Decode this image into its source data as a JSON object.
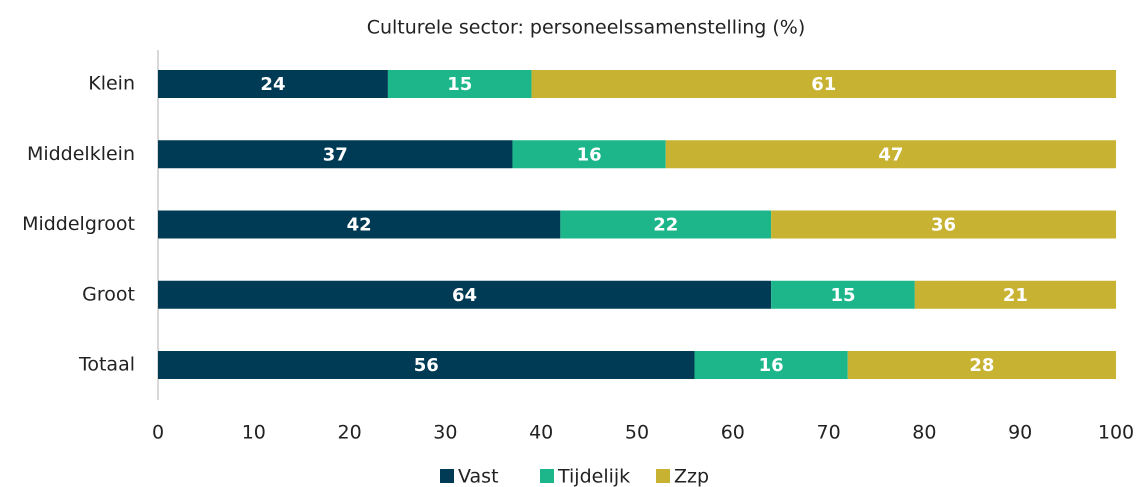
{
  "chart_data": {
    "type": "stacked-barh",
    "title": "Culturele sector: personeelssamenstelling (%)",
    "categories": [
      "Klein",
      "Middelklein",
      "Middelgroot",
      "Groot",
      "Totaal"
    ],
    "series": [
      {
        "name": "Vast",
        "color": "#003b55",
        "values": [
          24,
          37,
          42,
          64,
          56
        ]
      },
      {
        "name": "Tijdelijk",
        "color": "#1db58a",
        "values": [
          15,
          16,
          22,
          15,
          16
        ]
      },
      {
        "name": "Zzp",
        "color": "#c7b231",
        "values": [
          61,
          47,
          36,
          21,
          28
        ]
      }
    ],
    "xlim": [
      0,
      100
    ],
    "xticks": [
      0,
      10,
      20,
      30,
      40,
      50,
      60,
      70,
      80,
      90,
      100
    ],
    "legend": "bottom"
  }
}
